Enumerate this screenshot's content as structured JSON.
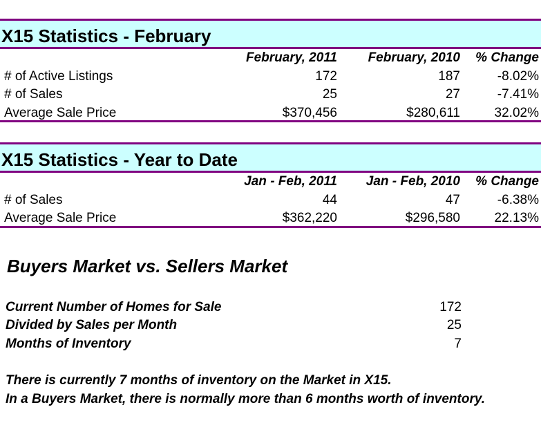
{
  "monthly": {
    "title": "X15 Statistics - February",
    "headers": [
      "",
      "February, 2011",
      "February, 2010",
      "% Change"
    ],
    "rows": [
      [
        "# of Active Listings",
        "172",
        "187",
        "-8.02%"
      ],
      [
        "# of Sales",
        "25",
        "27",
        "-7.41%"
      ],
      [
        "Average Sale Price",
        "$370,456",
        "$280,611",
        "32.02%"
      ]
    ]
  },
  "ytd": {
    "title": "X15 Statistics - Year to Date",
    "headers": [
      "",
      "Jan - Feb, 2011",
      "Jan - Feb, 2010",
      "% Change"
    ],
    "rows": [
      [
        "# of Sales",
        "44",
        "47",
        "-6.38%"
      ],
      [
        "Average Sale Price",
        "$362,220",
        "$296,580",
        "22.13%"
      ]
    ]
  },
  "market": {
    "title": "Buyers Market vs. Sellers Market",
    "rows": [
      [
        "Current Number of Homes for Sale",
        "172"
      ],
      [
        "Divided by Sales per Month",
        "25"
      ],
      [
        "Months of Inventory",
        "7"
      ]
    ],
    "notes": [
      "There is currently 7 months of inventory on the Market in X15.",
      "In a Buyers Market, there is normally more than 6 months worth of inventory."
    ]
  }
}
